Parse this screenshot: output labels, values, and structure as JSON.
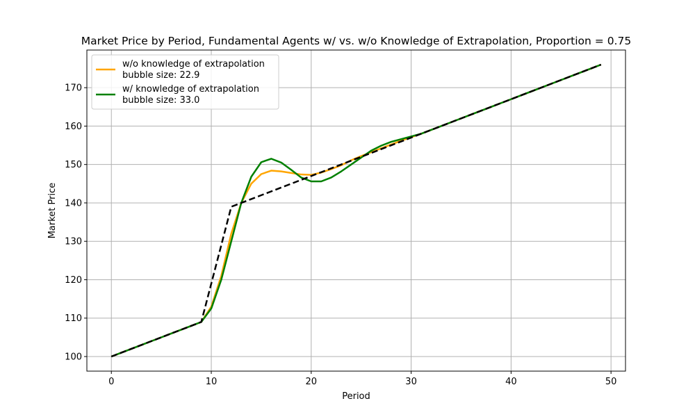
{
  "chart_data": {
    "type": "line",
    "title": "Market Price by Period, Fundamental Agents w/ vs. w/o Knowledge of Extrapolation, Proportion = 0.75",
    "xlabel": "Period",
    "ylabel": "Market Price",
    "xlim": [
      -2.45,
      51.45
    ],
    "ylim": [
      96.2,
      179.8
    ],
    "xticks": [
      0,
      10,
      20,
      30,
      40,
      50
    ],
    "yticks": [
      100,
      110,
      120,
      130,
      140,
      150,
      160,
      170
    ],
    "grid": true,
    "legend_position": "upper-left",
    "x": [
      0,
      1,
      2,
      3,
      4,
      5,
      6,
      7,
      8,
      9,
      10,
      11,
      12,
      13,
      14,
      15,
      16,
      17,
      18,
      19,
      20,
      21,
      22,
      23,
      24,
      25,
      26,
      27,
      28,
      29,
      30,
      31,
      32,
      33,
      34,
      35,
      36,
      37,
      38,
      39,
      40,
      41,
      42,
      43,
      44,
      45,
      46,
      47,
      48,
      49
    ],
    "series": [
      {
        "name": "w/o knowledge of extrapolation",
        "subtitle": "bubble size: 22.9",
        "color": "#ffa500",
        "style": "solid",
        "values": [
          100,
          101,
          102,
          103,
          104,
          105,
          106,
          107,
          108,
          109,
          113,
          121,
          132,
          140,
          145,
          147.5,
          148.4,
          148.2,
          147.8,
          147.4,
          147.3,
          147.9,
          148.8,
          149.8,
          151.1,
          152.2,
          153.2,
          154.2,
          155.2,
          156.2,
          157.1,
          158,
          159,
          160,
          161,
          162,
          163,
          164,
          165,
          166,
          167,
          168,
          169,
          170,
          171,
          172,
          173,
          174,
          175,
          176
        ]
      },
      {
        "name": "w/ knowledge of extrapolation",
        "subtitle": "bubble size: 33.0",
        "color": "#008000",
        "style": "solid",
        "values": [
          100,
          101,
          102,
          103,
          104,
          105,
          106,
          107,
          108,
          109,
          112.5,
          120,
          130,
          140,
          146.8,
          150.6,
          151.5,
          150.5,
          148.6,
          146.6,
          145.6,
          145.6,
          146.6,
          148.2,
          150,
          151.8,
          153.6,
          154.9,
          155.9,
          156.6,
          157.3,
          158,
          159,
          160,
          161,
          162,
          163,
          164,
          165,
          166,
          167,
          168,
          169,
          170,
          171,
          172,
          173,
          174,
          175,
          176
        ]
      },
      {
        "name": "",
        "color": "#000000",
        "style": "dashed",
        "values": [
          100,
          101,
          102,
          103,
          104,
          105,
          106,
          107,
          108,
          109,
          119,
          129,
          139,
          140,
          141,
          142,
          143,
          144,
          145,
          146,
          147,
          148,
          149,
          150,
          151,
          152,
          153,
          154,
          155,
          156,
          157,
          158,
          159,
          160,
          161,
          162,
          163,
          164,
          165,
          166,
          167,
          168,
          169,
          170,
          171,
          172,
          173,
          174,
          175,
          176
        ]
      }
    ]
  }
}
